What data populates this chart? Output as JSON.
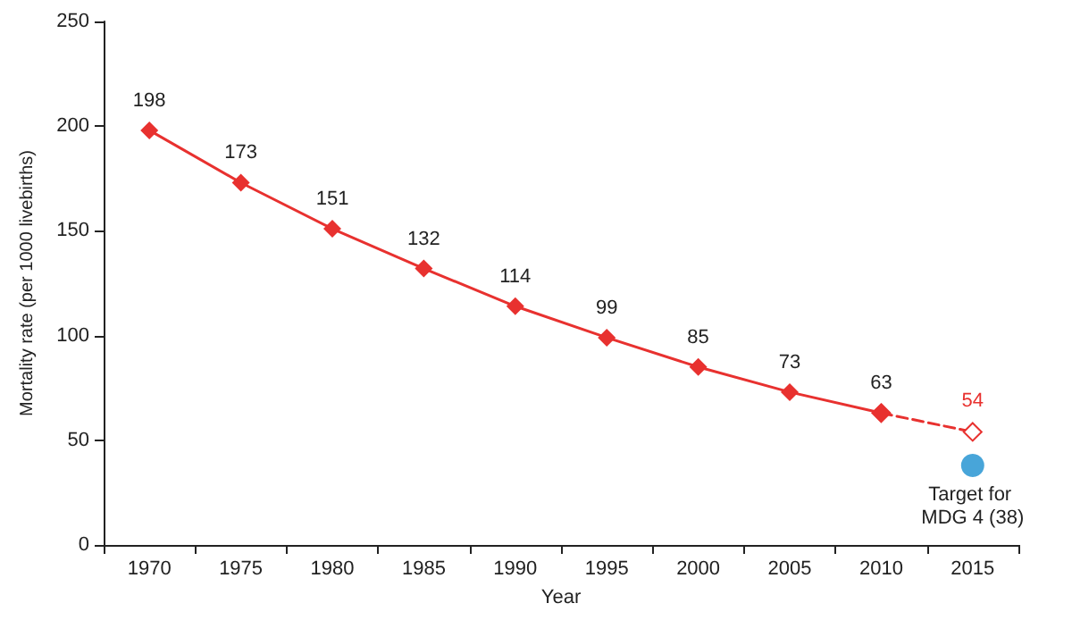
{
  "chart_data": {
    "type": "line",
    "xlabel": "Year",
    "ylabel": "Mortality rate (per 1000 livebirths)",
    "categories": [
      "1970",
      "1975",
      "1980",
      "1985",
      "1990",
      "1995",
      "2000",
      "2005",
      "2010",
      "2015"
    ],
    "series": [
      {
        "color": "#e8312f",
        "line_style": "dashed",
        "marker": "diamond",
        "values": [
          null,
          null,
          null,
          null,
          null,
          null,
          null,
          null,
          63,
          54
        ],
        "value_labels": [
          null,
          null,
          null,
          null,
          null,
          null,
          null,
          null,
          null,
          "54"
        ]
      },
      {
        "color": "#e8312f",
        "line_style": "solid",
        "marker": "diamond",
        "values": [
          198,
          173,
          151,
          132,
          114,
          99,
          85,
          73,
          63,
          null
        ],
        "value_labels": [
          "198",
          "173",
          "151",
          "132",
          "114",
          "99",
          "85",
          "73",
          "63",
          null
        ]
      },
      {
        "type": "scatter",
        "color": "#1a8fd0",
        "marker": "circle",
        "values": [
          null,
          null,
          null,
          null,
          null,
          null,
          null,
          null,
          null,
          38
        ]
      }
    ],
    "annotations": [
      {
        "text": "Target for MDG 4 (38)",
        "x": "2015",
        "y": 38
      }
    ],
    "ylim": [
      0,
      250
    ],
    "yticks": [
      0,
      50,
      100,
      150,
      200,
      250
    ],
    "grid": false
  }
}
